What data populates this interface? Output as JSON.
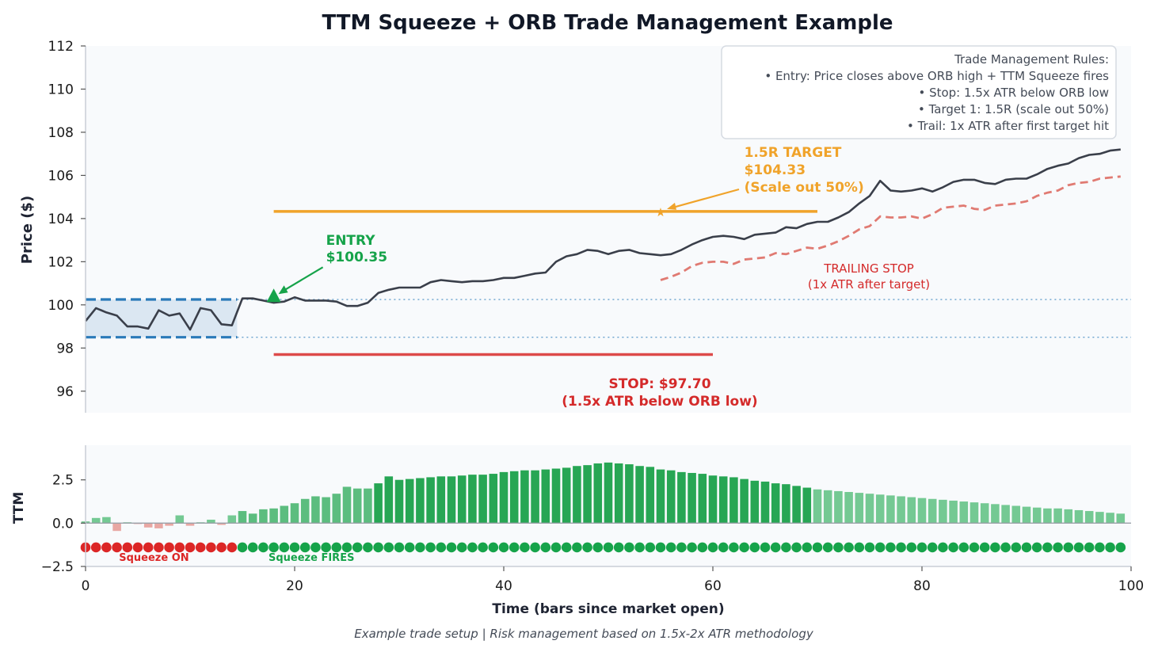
{
  "title": "TTM Squeeze + ORB Trade Management Example",
  "footnote": "Example trade setup | Risk management based on 1.5x-2x ATR methodology",
  "chart_data": [
    {
      "type": "line",
      "ylabel": "Price ($)",
      "xlim": [
        0,
        100
      ],
      "ylim": [
        95,
        112
      ],
      "yticks": [
        96,
        98,
        100,
        102,
        104,
        106,
        108,
        110,
        112
      ],
      "grid": false,
      "colors": {
        "price": "#3a3f4a",
        "orb": "#2a7ab9",
        "target": "#f0a32a",
        "stop": "#dd4a4a",
        "trail": "#e07a72",
        "entry": "#16a34a"
      },
      "price": {
        "x": [
          0,
          1,
          2,
          3,
          4,
          5,
          6,
          7,
          8,
          9,
          10,
          11,
          12,
          13,
          14,
          15,
          16,
          17,
          18,
          19,
          20,
          21,
          22,
          23,
          24,
          25,
          26,
          27,
          28,
          29,
          30,
          31,
          32,
          33,
          34,
          35,
          36,
          37,
          38,
          39,
          40,
          41,
          42,
          43,
          44,
          45,
          46,
          47,
          48,
          49,
          50,
          51,
          52,
          53,
          54,
          55,
          56,
          57,
          58,
          59,
          60,
          61,
          62,
          63,
          64,
          65,
          66,
          67,
          68,
          69,
          70,
          71,
          72,
          73,
          74,
          75,
          76,
          77,
          78,
          79,
          80,
          81,
          82,
          83,
          84,
          85,
          86,
          87,
          88,
          89,
          90,
          91,
          92,
          93,
          94,
          95,
          96,
          97,
          98,
          99
        ],
        "y": [
          99.25,
          99.85,
          99.65,
          99.5,
          99.0,
          99.0,
          98.9,
          99.75,
          99.5,
          99.6,
          98.85,
          99.85,
          99.75,
          99.1,
          99.05,
          100.3,
          100.3,
          100.2,
          100.1,
          100.15,
          100.35,
          100.2,
          100.2,
          100.2,
          100.15,
          99.95,
          99.95,
          100.1,
          100.55,
          100.7,
          100.8,
          100.8,
          100.8,
          101.05,
          101.15,
          101.1,
          101.05,
          101.1,
          101.1,
          101.15,
          101.25,
          101.25,
          101.35,
          101.45,
          101.5,
          102.0,
          102.25,
          102.35,
          102.55,
          102.5,
          102.35,
          102.5,
          102.55,
          102.4,
          102.35,
          102.3,
          102.35,
          102.55,
          102.8,
          103.0,
          103.15,
          103.2,
          103.15,
          103.05,
          103.25,
          103.3,
          103.35,
          103.6,
          103.55,
          103.75,
          103.85,
          103.85,
          104.05,
          104.3,
          104.7,
          105.05,
          105.75,
          105.3,
          105.25,
          105.3,
          105.4,
          105.25,
          105.45,
          105.7,
          105.8,
          105.8,
          105.65,
          105.6,
          105.8,
          105.85,
          105.85,
          106.05,
          106.3,
          106.45,
          106.55,
          106.8,
          106.95,
          107.0,
          107.15,
          107.2
        ]
      },
      "orb": {
        "high": 100.25,
        "low": 98.5,
        "x_start": 0,
        "x_end": 14.5
      },
      "entry": {
        "x": 18,
        "y": 100.35,
        "label": "ENTRY\n$100.35"
      },
      "target": {
        "price": 104.33,
        "x_start": 18,
        "x_end": 70,
        "marker_x": 55,
        "label": "1.5R TARGET\n$104.33\n(Scale out 50%)"
      },
      "stop": {
        "price": 97.7,
        "x_start": 18,
        "x_end": 60,
        "label": "STOP: $97.70\n(1.5x ATR below ORB low)"
      },
      "trailing_stop": {
        "x": [
          55,
          56,
          57,
          58,
          59,
          60,
          61,
          62,
          63,
          64,
          65,
          66,
          67,
          68,
          69,
          70,
          71,
          72,
          73,
          74,
          75,
          76,
          77,
          78,
          79,
          80,
          81,
          82,
          83,
          84,
          85,
          86,
          87,
          88,
          89,
          90,
          91,
          92,
          93,
          94,
          95,
          96,
          97,
          98,
          99
        ],
        "y": [
          101.15,
          101.3,
          101.5,
          101.8,
          101.95,
          102.0,
          102.0,
          101.9,
          102.1,
          102.15,
          102.2,
          102.4,
          102.35,
          102.5,
          102.65,
          102.6,
          102.75,
          102.95,
          103.2,
          103.5,
          103.65,
          104.1,
          104.05,
          104.05,
          104.1,
          104.0,
          104.2,
          104.5,
          104.55,
          104.6,
          104.45,
          104.4,
          104.6,
          104.65,
          104.7,
          104.8,
          105.05,
          105.2,
          105.3,
          105.55,
          105.65,
          105.7,
          105.85,
          105.9,
          105.95
        ],
        "label": "TRAILING STOP\n(1x ATR after target)"
      },
      "rules_box": {
        "lines": [
          "Trade Management Rules:",
          "• Entry: Price closes above ORB high + TTM Squeeze fires",
          "• Stop: 1.5x ATR below ORB low",
          "• Target 1: 1.5R (scale out 50%)",
          "• Trail: 1x ATR after first target hit"
        ],
        "placement": "top-right"
      }
    },
    {
      "type": "bar",
      "ylabel": "TTM",
      "xlabel": "Time (bars since market open)",
      "xlim": [
        0,
        100
      ],
      "ylim": [
        -2.5,
        4.5
      ],
      "yticks": [
        -2.5,
        0.0,
        2.5
      ],
      "yticklabels": [
        "−2.5",
        "0.0",
        "2.5"
      ],
      "xticks": [
        0,
        20,
        40,
        60,
        80,
        100
      ],
      "colors": {
        "strong_pos": "#27a654",
        "weak_pos": "#74c993",
        "neg": "#e8a7a3",
        "squeeze_on": "#dc2626",
        "squeeze_off": "#16a34a"
      },
      "momentum": {
        "x": [
          0,
          1,
          2,
          3,
          4,
          5,
          6,
          7,
          8,
          9,
          10,
          11,
          12,
          13,
          14,
          15,
          16,
          17,
          18,
          19,
          20,
          21,
          22,
          23,
          24,
          25,
          26,
          27,
          28,
          29,
          30,
          31,
          32,
          33,
          34,
          35,
          36,
          37,
          38,
          39,
          40,
          41,
          42,
          43,
          44,
          45,
          46,
          47,
          48,
          49,
          50,
          51,
          52,
          53,
          54,
          55,
          56,
          57,
          58,
          59,
          60,
          61,
          62,
          63,
          64,
          65,
          66,
          67,
          68,
          69,
          70,
          71,
          72,
          73,
          74,
          75,
          76,
          77,
          78,
          79,
          80,
          81,
          82,
          83,
          84,
          85,
          86,
          87,
          88,
          89,
          90,
          91,
          92,
          93,
          94,
          95,
          96,
          97,
          98,
          99
        ],
        "values": [
          0.1,
          0.3,
          0.35,
          -0.45,
          0.05,
          -0.05,
          -0.25,
          -0.3,
          -0.15,
          0.45,
          -0.15,
          0.05,
          0.2,
          -0.1,
          0.45,
          0.7,
          0.55,
          0.8,
          0.85,
          1.0,
          1.15,
          1.4,
          1.55,
          1.5,
          1.7,
          2.1,
          2.0,
          2.0,
          2.3,
          2.7,
          2.5,
          2.55,
          2.6,
          2.65,
          2.7,
          2.7,
          2.75,
          2.8,
          2.8,
          2.85,
          2.95,
          3.0,
          3.05,
          3.05,
          3.1,
          3.15,
          3.2,
          3.3,
          3.35,
          3.45,
          3.5,
          3.45,
          3.4,
          3.3,
          3.25,
          3.1,
          3.05,
          2.95,
          2.9,
          2.85,
          2.75,
          2.7,
          2.65,
          2.55,
          2.45,
          2.4,
          2.3,
          2.25,
          2.15,
          2.05,
          1.95,
          1.9,
          1.85,
          1.8,
          1.75,
          1.7,
          1.65,
          1.6,
          1.55,
          1.5,
          1.45,
          1.4,
          1.35,
          1.3,
          1.25,
          1.2,
          1.15,
          1.1,
          1.05,
          1.0,
          0.95,
          0.9,
          0.85,
          0.85,
          0.8,
          0.75,
          0.7,
          0.65,
          0.6,
          0.55
        ],
        "strong_until": 69
      },
      "squeeze_dots": {
        "y": -1.4,
        "on_until": 14
      },
      "labels": {
        "squeeze_on": "Squeeze ON",
        "squeeze_fires": "Squeeze FIRES"
      }
    }
  ]
}
